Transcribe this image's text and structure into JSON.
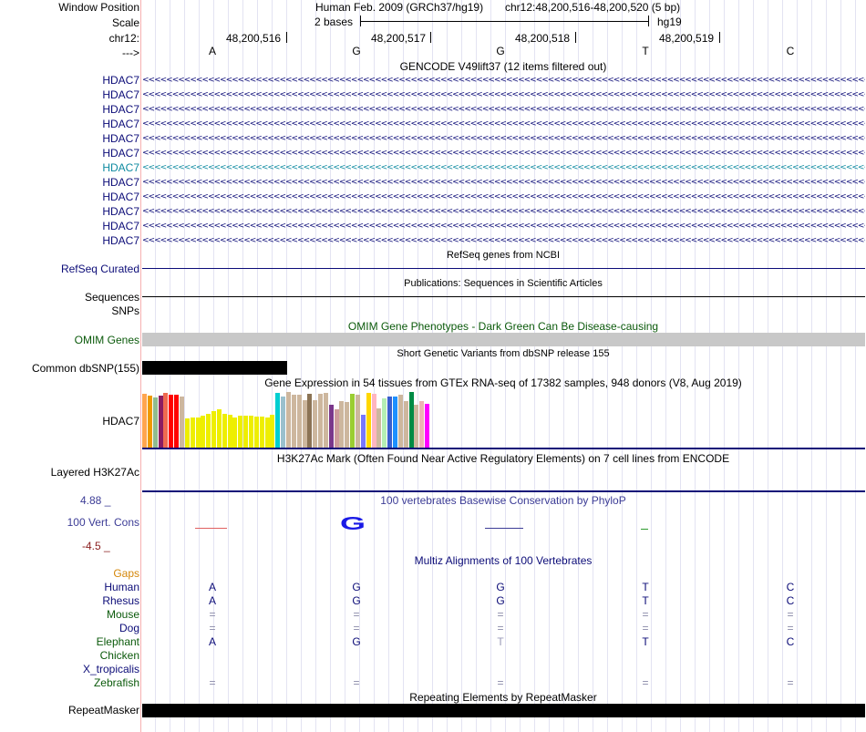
{
  "header": {
    "window_position_label": "Window Position",
    "scale_label": "Scale",
    "chrom_label": "chr12:",
    "strand_label": "--->",
    "assembly": "Human Feb. 2009 (GRCh37/hg19)",
    "position": "chr12:48,200,516-48,200,520 (5 bp)",
    "scale_text": "2 bases",
    "db": "hg19",
    "ruler": [
      "48,200,516",
      "48,200,517",
      "48,200,518",
      "48,200,519"
    ],
    "bases": [
      "A",
      "G",
      "G",
      "T",
      "C"
    ]
  },
  "gencode": {
    "title": "GENCODE V49lift37 (12 items filtered out)",
    "items": [
      "HDAC7",
      "HDAC7",
      "HDAC7",
      "HDAC7",
      "HDAC7",
      "HDAC7",
      "HDAC7",
      "HDAC7",
      "HDAC7",
      "HDAC7",
      "HDAC7",
      "HDAC7"
    ],
    "highlight_index": 6,
    "arrow_text": "<<<<<<<<<<<<<<<<<<<<<<<<<<<<<<<<<<<<<<<<<<<<<<<<<<<<<<<<<<<<<<<<<<<<<<<<<<<<<<<<<<<<<<<<<<<<<<<<<<<<<<<<<<<<<<<<<<<<<<<<<<<<<<<<<<<<<<<<<<<<<<<<<<<<<<<<<<<<<<<<<<<<<<<<<<<<<<<<<<<<<<<<<<<<<<<<<<<<<<<<<<<<<<<<<<<"
  },
  "refseq": {
    "title": "RefSeq genes from NCBI",
    "label": "RefSeq Curated"
  },
  "publications": {
    "title": "Publications: Sequences in Scientific Articles",
    "label": "Sequences"
  },
  "snps_label": "SNPs",
  "omim": {
    "title": "OMIM Gene Phenotypes - Dark Green Can Be Disease-causing",
    "label": "OMIM Genes"
  },
  "dbsnp": {
    "title": "Short Genetic Variants from dbSNP release 155",
    "label": "Common dbSNP(155)"
  },
  "gtex": {
    "title": "Gene Expression in 54 tissues from GTEx RNA-seq of 17382 samples, 948 donors (V8, Aug 2019)",
    "label": "HDAC7",
    "values": [
      0.95,
      0.92,
      0.88,
      0.92,
      0.97,
      0.94,
      0.93,
      0.9,
      0.52,
      0.54,
      0.54,
      0.57,
      0.6,
      0.65,
      0.67,
      0.6,
      0.58,
      0.54,
      0.56,
      0.56,
      0.57,
      0.55,
      0.55,
      0.53,
      0.58,
      0.96,
      0.9,
      0.98,
      0.93,
      0.93,
      0.84,
      0.95,
      0.84,
      0.95,
      0.96,
      0.75,
      0.68,
      0.82,
      0.8,
      0.95,
      0.93,
      0.58,
      0.97,
      0.95,
      0.7,
      0.87,
      0.9,
      0.91,
      0.93,
      0.82,
      0.98,
      0.75,
      0.82,
      0.78
    ],
    "colors": [
      "#ffa54f",
      "#ee9a00",
      "#8fbc8f",
      "#8b1c62",
      "#ee6a50",
      "#ff0000",
      "#ff0000",
      "#cdb79e",
      "#eeee00",
      "#eeee00",
      "#eeee00",
      "#eeee00",
      "#eeee00",
      "#eeee00",
      "#eeee00",
      "#eeee00",
      "#eeee00",
      "#eeee00",
      "#eeee00",
      "#eeee00",
      "#eeee00",
      "#eeee00",
      "#eeee00",
      "#eeee00",
      "#eeee00",
      "#00ced1",
      "#9ac0cd",
      "#cdb79e",
      "#cdb79e",
      "#cdb79e",
      "#cdb79e",
      "#8b7355",
      "#cdb79e",
      "#cdb79e",
      "#cdb79e",
      "#7a378b",
      "#cd9b9b",
      "#cdb79e",
      "#cdb79e",
      "#9acd32",
      "#cdb79e",
      "#7777ff",
      "#ffd700",
      "#ffb6c1",
      "#cdb79e",
      "#b4eeb4",
      "#3a5fcd",
      "#1e90ff",
      "#cdb79e",
      "#cdb79e",
      "#008b45",
      "#cdb79e",
      "#eeb4b4",
      "#ff00ff"
    ]
  },
  "h3k27ac": {
    "title": "H3K27Ac Mark (Often Found Near Active Regulatory Elements) on 7 cell lines from ENCODE",
    "label": "Layered H3K27Ac"
  },
  "phylop": {
    "title": "100 vertebrates Basewise Conservation by PhyloP",
    "label": "100 Vert. Cons",
    "max": "4.88 _",
    "min": "-4.5 _",
    "glyph": "G"
  },
  "multiz": {
    "title": "Multiz Alignments of 100 Vertebrates",
    "gaps_label": "Gaps",
    "species": [
      {
        "name": "Human",
        "bases": [
          "A",
          "G",
          "G",
          "T",
          "C"
        ],
        "color": "#0c0c78"
      },
      {
        "name": "Rhesus",
        "bases": [
          "A",
          "G",
          "G",
          "T",
          "C"
        ],
        "color": "#0c0c78"
      },
      {
        "name": "Mouse",
        "bases": [
          "=",
          "=",
          "=",
          "=",
          "="
        ],
        "color": "#0b5a0b"
      },
      {
        "name": "Dog",
        "bases": [
          "=",
          "=",
          "=",
          "=",
          "="
        ],
        "color": "#0c0c78"
      },
      {
        "name": "Elephant",
        "bases": [
          "A",
          "G",
          "T",
          "T",
          "C"
        ],
        "color": "#0b5a0b"
      },
      {
        "name": "Chicken",
        "bases": [
          "",
          "",
          "",
          "",
          ""
        ],
        "color": "#0b5a0b"
      },
      {
        "name": "X_tropicalis",
        "bases": [
          "",
          "",
          "",
          "",
          ""
        ],
        "color": "#0c0c78"
      },
      {
        "name": "Zebrafish",
        "bases": [
          "=",
          "=",
          "=",
          "=",
          "="
        ],
        "color": "#0b5a0b"
      }
    ]
  },
  "repeatmasker": {
    "title": "Repeating Elements by RepeatMasker",
    "label": "RepeatMasker"
  },
  "colors": {
    "navy": "#0c0c78",
    "highlight": "#0e8aa0",
    "omim_green": "#0b5a0b",
    "gaps_orange": "#d4870a",
    "phylop_blue": "#3c3c96",
    "phylop_red": "#8b2020",
    "divider": "#f7b0b0"
  }
}
